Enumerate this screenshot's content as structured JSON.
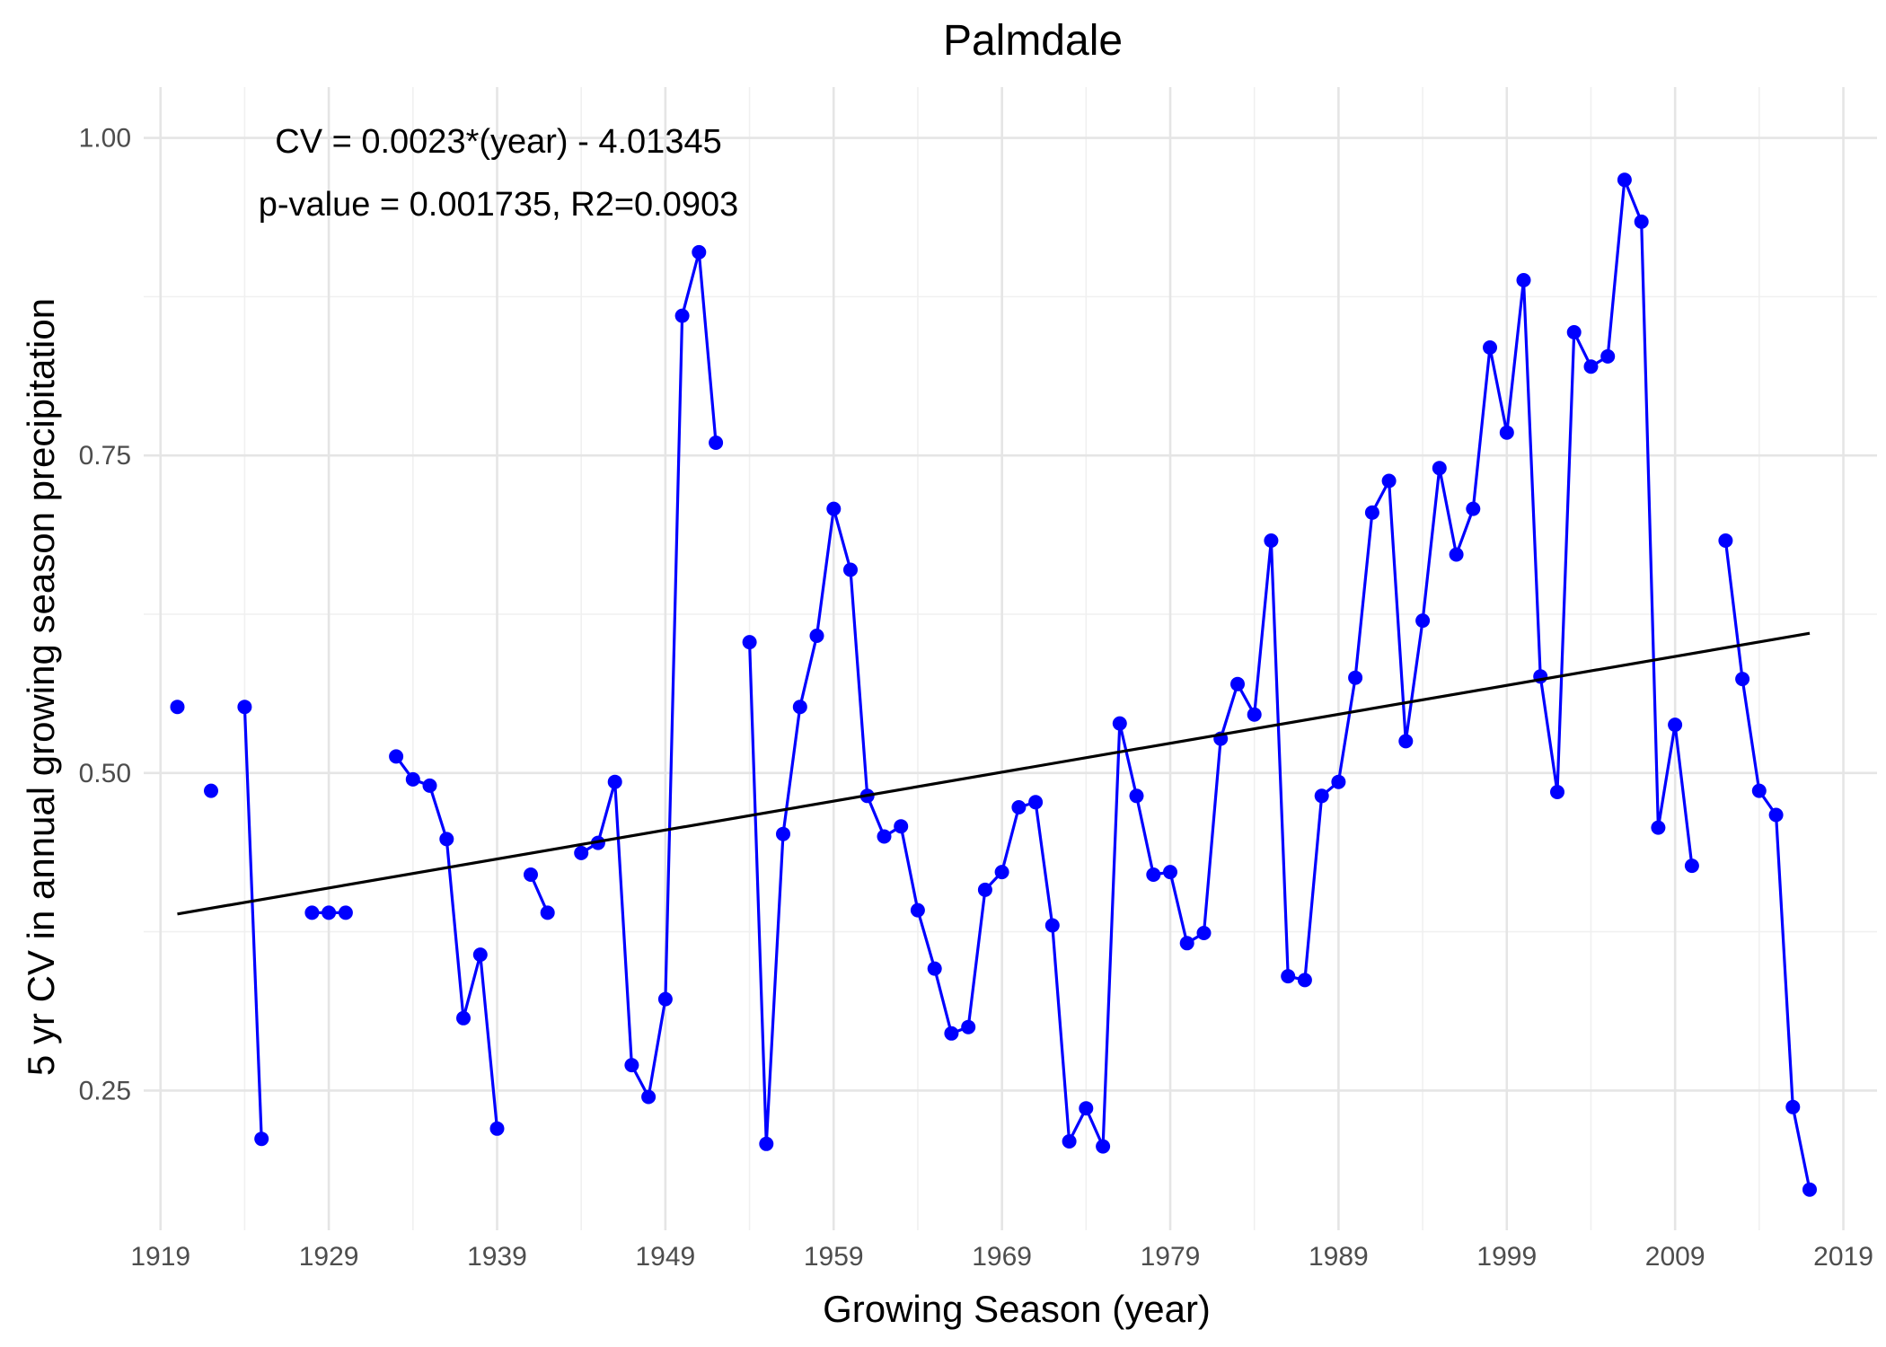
{
  "chart_data": {
    "type": "line",
    "title": "Palmdale",
    "xlabel": "Growing Season (year)",
    "ylabel": "5 yr CV in annual growing season precipitation",
    "xlim": [
      1918,
      2021
    ],
    "ylim": [
      0.14,
      1.04
    ],
    "x_ticks": [
      1919,
      1929,
      1939,
      1949,
      1959,
      1969,
      1979,
      1989,
      1999,
      2009,
      2019
    ],
    "x_tick_labels": [
      "1919",
      "1929",
      "1939",
      "1949",
      "1959",
      "1969",
      "1979",
      "1989",
      "1999",
      "2009",
      "2019"
    ],
    "y_ticks": [
      0.25,
      0.5,
      0.75,
      1.0
    ],
    "y_tick_labels": [
      "0.25",
      "0.50",
      "0.75",
      "1.00"
    ],
    "grid": true,
    "annotations": [
      "CV = 0.0023*(year) - 4.01345",
      "p-value = 0.001735, R2=0.0903"
    ],
    "trend": {
      "x": [
        1920,
        2017
      ],
      "y": [
        0.389,
        0.61
      ]
    },
    "series": [
      {
        "color": "#0000ff",
        "points": [
          [
            1920,
            0.552
          ],
          [
            1922,
            0.486
          ],
          [
            1924,
            0.552
          ],
          [
            1925,
            0.212
          ],
          [
            1928,
            0.39
          ],
          [
            1929,
            0.39
          ],
          [
            1930,
            0.39
          ],
          [
            1933,
            0.513
          ],
          [
            1934,
            0.495
          ],
          [
            1935,
            0.49
          ],
          [
            1936,
            0.448
          ],
          [
            1937,
            0.307
          ],
          [
            1938,
            0.357
          ],
          [
            1939,
            0.22
          ],
          [
            1941,
            0.42
          ],
          [
            1942,
            0.39
          ],
          [
            1944,
            0.437
          ],
          [
            1945,
            0.445
          ],
          [
            1946,
            0.493
          ],
          [
            1947,
            0.27
          ],
          [
            1948,
            0.245
          ],
          [
            1949,
            0.322
          ],
          [
            1950,
            0.86
          ],
          [
            1951,
            0.91
          ],
          [
            1952,
            0.76
          ],
          [
            1954,
            0.603
          ],
          [
            1955,
            0.208
          ],
          [
            1956,
            0.452
          ],
          [
            1957,
            0.552
          ],
          [
            1958,
            0.608
          ],
          [
            1959,
            0.708
          ],
          [
            1960,
            0.66
          ],
          [
            1961,
            0.482
          ],
          [
            1962,
            0.45
          ],
          [
            1963,
            0.458
          ],
          [
            1964,
            0.392
          ],
          [
            1965,
            0.346
          ],
          [
            1966,
            0.295
          ],
          [
            1967,
            0.3
          ],
          [
            1968,
            0.408
          ],
          [
            1969,
            0.422
          ],
          [
            1970,
            0.473
          ],
          [
            1971,
            0.477
          ],
          [
            1972,
            0.38
          ],
          [
            1973,
            0.21
          ],
          [
            1974,
            0.236
          ],
          [
            1975,
            0.206
          ],
          [
            1976,
            0.539
          ],
          [
            1977,
            0.482
          ],
          [
            1978,
            0.42
          ],
          [
            1979,
            0.422
          ],
          [
            1980,
            0.366
          ],
          [
            1981,
            0.374
          ],
          [
            1982,
            0.527
          ],
          [
            1983,
            0.57
          ],
          [
            1984,
            0.546
          ],
          [
            1985,
            0.683
          ],
          [
            1986,
            0.34
          ],
          [
            1987,
            0.337
          ],
          [
            1988,
            0.482
          ],
          [
            1989,
            0.493
          ],
          [
            1990,
            0.575
          ],
          [
            1991,
            0.705
          ],
          [
            1992,
            0.73
          ],
          [
            1993,
            0.525
          ],
          [
            1994,
            0.62
          ],
          [
            1995,
            0.74
          ],
          [
            1996,
            0.672
          ],
          [
            1997,
            0.708
          ],
          [
            1998,
            0.835
          ],
          [
            1999,
            0.768
          ],
          [
            2000,
            0.888
          ],
          [
            2001,
            0.576
          ],
          [
            2002,
            0.485
          ],
          [
            2003,
            0.847
          ],
          [
            2004,
            0.82
          ],
          [
            2005,
            0.828
          ],
          [
            2006,
            0.967
          ],
          [
            2007,
            0.934
          ],
          [
            2008,
            0.457
          ],
          [
            2009,
            0.538
          ],
          [
            2010,
            0.427
          ],
          [
            2012,
            0.683
          ],
          [
            2013,
            0.574
          ],
          [
            2014,
            0.486
          ],
          [
            2015,
            0.467
          ],
          [
            2016,
            0.237
          ],
          [
            2017,
            0.172
          ]
        ]
      }
    ]
  }
}
